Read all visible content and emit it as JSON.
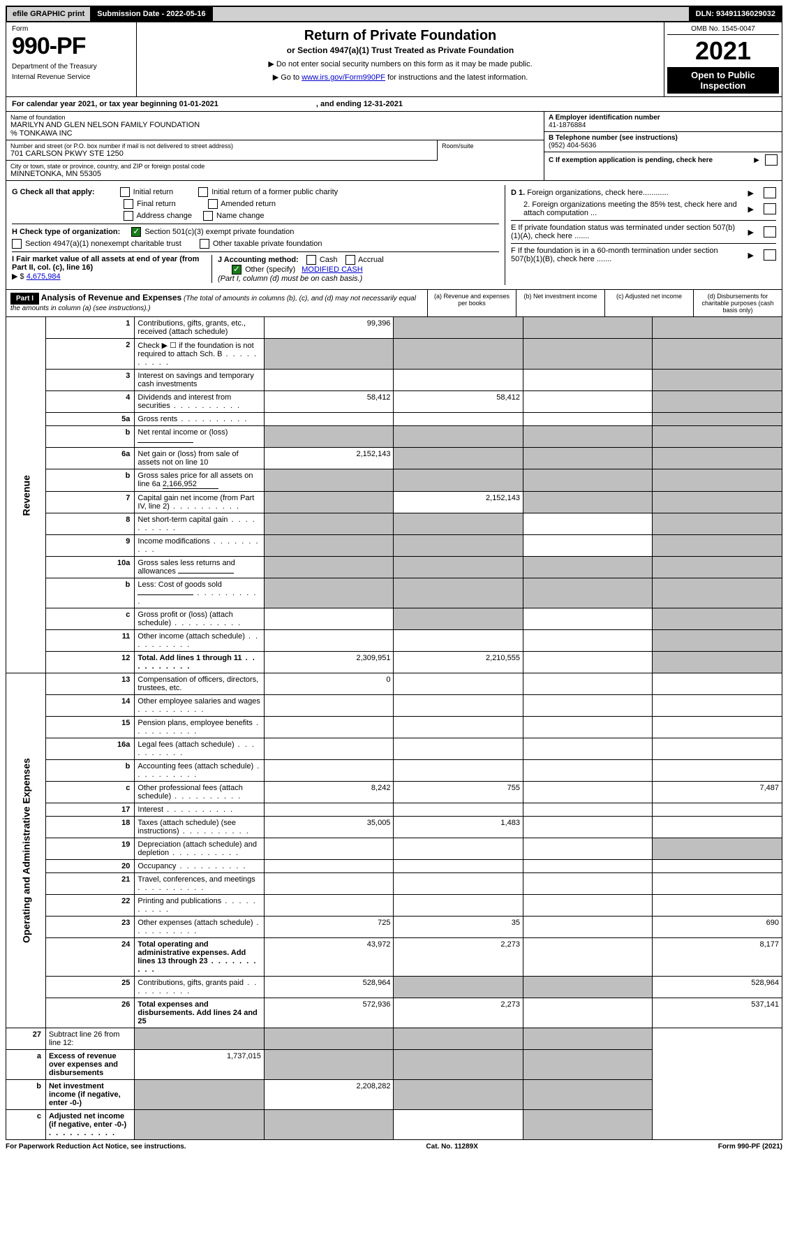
{
  "top": {
    "efile": "efile GRAPHIC print",
    "subdate": "Submission Date - 2022-05-16",
    "dln": "DLN: 93491136029032"
  },
  "header": {
    "form_label": "Form",
    "form_num": "990-PF",
    "dept": "Department of the Treasury",
    "irs": "Internal Revenue Service",
    "title": "Return of Private Foundation",
    "subtitle": "or Section 4947(a)(1) Trust Treated as Private Foundation",
    "note1": "▶ Do not enter social security numbers on this form as it may be made public.",
    "note2_prefix": "▶ Go to ",
    "note2_link": "www.irs.gov/Form990PF",
    "note2_suffix": " for instructions and the latest information.",
    "omb": "OMB No. 1545-0047",
    "year": "2021",
    "inspection": "Open to Public Inspection"
  },
  "cal": {
    "line": "For calendar year 2021, or tax year beginning 01-01-2021",
    "ending": ", and ending 12-31-2021"
  },
  "info": {
    "name_label": "Name of foundation",
    "name": "MARILYN AND GLEN NELSON FAMILY FOUNDATION",
    "co": "% TONKAWA INC",
    "addr_label": "Number and street (or P.O. box number if mail is not delivered to street address)",
    "addr": "701 CARLSON PKWY STE 1250",
    "room_label": "Room/suite",
    "city_label": "City or town, state or province, country, and ZIP or foreign postal code",
    "city": "MINNETONKA, MN  55305",
    "a_label": "A Employer identification number",
    "a_val": "41-1876884",
    "b_label": "B Telephone number (see instructions)",
    "b_val": "(952) 404-5636",
    "c_label": "C If exemption application is pending, check here"
  },
  "checks": {
    "g_label": "G Check all that apply:",
    "g_initial": "Initial return",
    "g_initial_former": "Initial return of a former public charity",
    "g_final": "Final return",
    "g_amended": "Amended return",
    "g_address": "Address change",
    "g_name": "Name change",
    "h_label": "H Check type of organization:",
    "h_501c3": "Section 501(c)(3) exempt private foundation",
    "h_4947": "Section 4947(a)(1) nonexempt charitable trust",
    "h_other": "Other taxable private foundation",
    "i_label": "I Fair market value of all assets at end of year (from Part II, col. (c), line 16)",
    "i_prefix": "▶ $",
    "i_val": "4,675,984",
    "j_label": "J Accounting method:",
    "j_cash": "Cash",
    "j_accrual": "Accrual",
    "j_other": "Other (specify)",
    "j_other_val": "MODIFIED CASH",
    "j_note": "(Part I, column (d) must be on cash basis.)",
    "d1": "D 1. Foreign organizations, check here............",
    "d2": "2. Foreign organizations meeting the 85% test, check here and attach computation ...",
    "e": "E  If private foundation status was terminated under section 507(b)(1)(A), check here .......",
    "f": "F  If the foundation is in a 60-month termination under section 507(b)(1)(B), check here .......",
    "arrow": "▶"
  },
  "part1": {
    "label": "Part I",
    "title": "Analysis of Revenue and Expenses",
    "subtitle": " (The total of amounts in columns (b), (c), and (d) may not necessarily equal the amounts in column (a) (see instructions).)",
    "col_a": "(a) Revenue and expenses per books",
    "col_b": "(b) Net investment income",
    "col_c": "(c) Adjusted net income",
    "col_d": "(d) Disbursements for charitable purposes (cash basis only)"
  },
  "sections": {
    "revenue": "Revenue",
    "expenses": "Operating and Administrative Expenses"
  },
  "rows": [
    {
      "n": "1",
      "d": "Contributions, gifts, grants, etc., received (attach schedule)",
      "a": "99,396",
      "b": "",
      "c": "",
      "dd": "",
      "grey_b": true,
      "grey_c": true,
      "grey_d": true
    },
    {
      "n": "2",
      "d": "Check ▶ ☐ if the foundation is not required to attach Sch. B",
      "dots": true,
      "a": "",
      "b": "",
      "c": "",
      "dd": "",
      "grey_a": true,
      "grey_b": true,
      "grey_c": true,
      "grey_d": true
    },
    {
      "n": "3",
      "d": "Interest on savings and temporary cash investments",
      "a": "",
      "b": "",
      "c": "",
      "dd": "",
      "grey_d": true
    },
    {
      "n": "4",
      "d": "Dividends and interest from securities",
      "dots": true,
      "a": "58,412",
      "b": "58,412",
      "c": "",
      "dd": "",
      "grey_d": true
    },
    {
      "n": "5a",
      "d": "Gross rents",
      "dots": true,
      "a": "",
      "b": "",
      "c": "",
      "dd": "",
      "grey_d": true
    },
    {
      "n": "b",
      "d": "Net rental income or (loss)",
      "inline": "",
      "a": "",
      "b": "",
      "c": "",
      "dd": "",
      "grey_a": true,
      "grey_b": true,
      "grey_c": true,
      "grey_d": true
    },
    {
      "n": "6a",
      "d": "Net gain or (loss) from sale of assets not on line 10",
      "a": "2,152,143",
      "b": "",
      "c": "",
      "dd": "",
      "grey_b": true,
      "grey_c": true,
      "grey_d": true
    },
    {
      "n": "b",
      "d": "Gross sales price for all assets on line 6a",
      "inline": "2,166,952",
      "a": "",
      "b": "",
      "c": "",
      "dd": "",
      "grey_a": true,
      "grey_b": true,
      "grey_c": true,
      "grey_d": true
    },
    {
      "n": "7",
      "d": "Capital gain net income (from Part IV, line 2)",
      "dots": true,
      "a": "",
      "b": "2,152,143",
      "c": "",
      "dd": "",
      "grey_a": true,
      "grey_c": true,
      "grey_d": true
    },
    {
      "n": "8",
      "d": "Net short-term capital gain",
      "dots": true,
      "a": "",
      "b": "",
      "c": "",
      "dd": "",
      "grey_a": true,
      "grey_b": true,
      "grey_d": true
    },
    {
      "n": "9",
      "d": "Income modifications",
      "dots": true,
      "a": "",
      "b": "",
      "c": "",
      "dd": "",
      "grey_a": true,
      "grey_b": true,
      "grey_d": true
    },
    {
      "n": "10a",
      "d": "Gross sales less returns and allowances",
      "inline": "",
      "a": "",
      "b": "",
      "c": "",
      "dd": "",
      "grey_a": true,
      "grey_b": true,
      "grey_c": true,
      "grey_d": true
    },
    {
      "n": "b",
      "d": "Less: Cost of goods sold",
      "dots": true,
      "inline": "",
      "a": "",
      "b": "",
      "c": "",
      "dd": "",
      "grey_a": true,
      "grey_b": true,
      "grey_c": true,
      "grey_d": true
    },
    {
      "n": "c",
      "d": "Gross profit or (loss) (attach schedule)",
      "dots": true,
      "a": "",
      "b": "",
      "c": "",
      "dd": "",
      "grey_b": true,
      "grey_d": true
    },
    {
      "n": "11",
      "d": "Other income (attach schedule)",
      "dots": true,
      "a": "",
      "b": "",
      "c": "",
      "dd": "",
      "grey_d": true
    },
    {
      "n": "12",
      "d": "Total. Add lines 1 through 11",
      "dots": true,
      "bold": true,
      "a": "2,309,951",
      "b": "2,210,555",
      "c": "",
      "dd": "",
      "grey_d": true
    }
  ],
  "exp_rows": [
    {
      "n": "13",
      "d": "Compensation of officers, directors, trustees, etc.",
      "a": "0",
      "b": "",
      "c": "",
      "dd": ""
    },
    {
      "n": "14",
      "d": "Other employee salaries and wages",
      "dots": true,
      "a": "",
      "b": "",
      "c": "",
      "dd": ""
    },
    {
      "n": "15",
      "d": "Pension plans, employee benefits",
      "dots": true,
      "a": "",
      "b": "",
      "c": "",
      "dd": ""
    },
    {
      "n": "16a",
      "d": "Legal fees (attach schedule)",
      "dots": true,
      "a": "",
      "b": "",
      "c": "",
      "dd": ""
    },
    {
      "n": "b",
      "d": "Accounting fees (attach schedule)",
      "dots": true,
      "a": "",
      "b": "",
      "c": "",
      "dd": ""
    },
    {
      "n": "c",
      "d": "Other professional fees (attach schedule)",
      "dots": true,
      "a": "8,242",
      "b": "755",
      "c": "",
      "dd": "7,487"
    },
    {
      "n": "17",
      "d": "Interest",
      "dots": true,
      "a": "",
      "b": "",
      "c": "",
      "dd": ""
    },
    {
      "n": "18",
      "d": "Taxes (attach schedule) (see instructions)",
      "dots": true,
      "a": "35,005",
      "b": "1,483",
      "c": "",
      "dd": ""
    },
    {
      "n": "19",
      "d": "Depreciation (attach schedule) and depletion",
      "dots": true,
      "a": "",
      "b": "",
      "c": "",
      "dd": "",
      "grey_d": true
    },
    {
      "n": "20",
      "d": "Occupancy",
      "dots": true,
      "a": "",
      "b": "",
      "c": "",
      "dd": ""
    },
    {
      "n": "21",
      "d": "Travel, conferences, and meetings",
      "dots": true,
      "a": "",
      "b": "",
      "c": "",
      "dd": ""
    },
    {
      "n": "22",
      "d": "Printing and publications",
      "dots": true,
      "a": "",
      "b": "",
      "c": "",
      "dd": ""
    },
    {
      "n": "23",
      "d": "Other expenses (attach schedule)",
      "dots": true,
      "a": "725",
      "b": "35",
      "c": "",
      "dd": "690"
    },
    {
      "n": "24",
      "d": "Total operating and administrative expenses. Add lines 13 through 23",
      "dots": true,
      "bold": true,
      "a": "43,972",
      "b": "2,273",
      "c": "",
      "dd": "8,177"
    },
    {
      "n": "25",
      "d": "Contributions, gifts, grants paid",
      "dots": true,
      "a": "528,964",
      "b": "",
      "c": "",
      "dd": "528,964",
      "grey_b": true,
      "grey_c": true
    },
    {
      "n": "26",
      "d": "Total expenses and disbursements. Add lines 24 and 25",
      "bold": true,
      "a": "572,936",
      "b": "2,273",
      "c": "",
      "dd": "537,141"
    }
  ],
  "final_rows": [
    {
      "n": "27",
      "d": "Subtract line 26 from line 12:",
      "a": "",
      "b": "",
      "c": "",
      "dd": "",
      "grey_a": true,
      "grey_b": true,
      "grey_c": true,
      "grey_d": true
    },
    {
      "n": "a",
      "d": "Excess of revenue over expenses and disbursements",
      "bold": true,
      "a": "1,737,015",
      "b": "",
      "c": "",
      "dd": "",
      "grey_b": true,
      "grey_c": true,
      "grey_d": true
    },
    {
      "n": "b",
      "d": "Net investment income (if negative, enter -0-)",
      "bold": true,
      "a": "",
      "b": "2,208,282",
      "c": "",
      "dd": "",
      "grey_a": true,
      "grey_c": true,
      "grey_d": true
    },
    {
      "n": "c",
      "d": "Adjusted net income (if negative, enter -0-)",
      "dots": true,
      "bold": true,
      "a": "",
      "b": "",
      "c": "",
      "dd": "",
      "grey_a": true,
      "grey_b": true,
      "grey_d": true
    }
  ],
  "footer": {
    "left": "For Paperwork Reduction Act Notice, see instructions.",
    "center": "Cat. No. 11289X",
    "right": "Form 990-PF (2021)"
  }
}
